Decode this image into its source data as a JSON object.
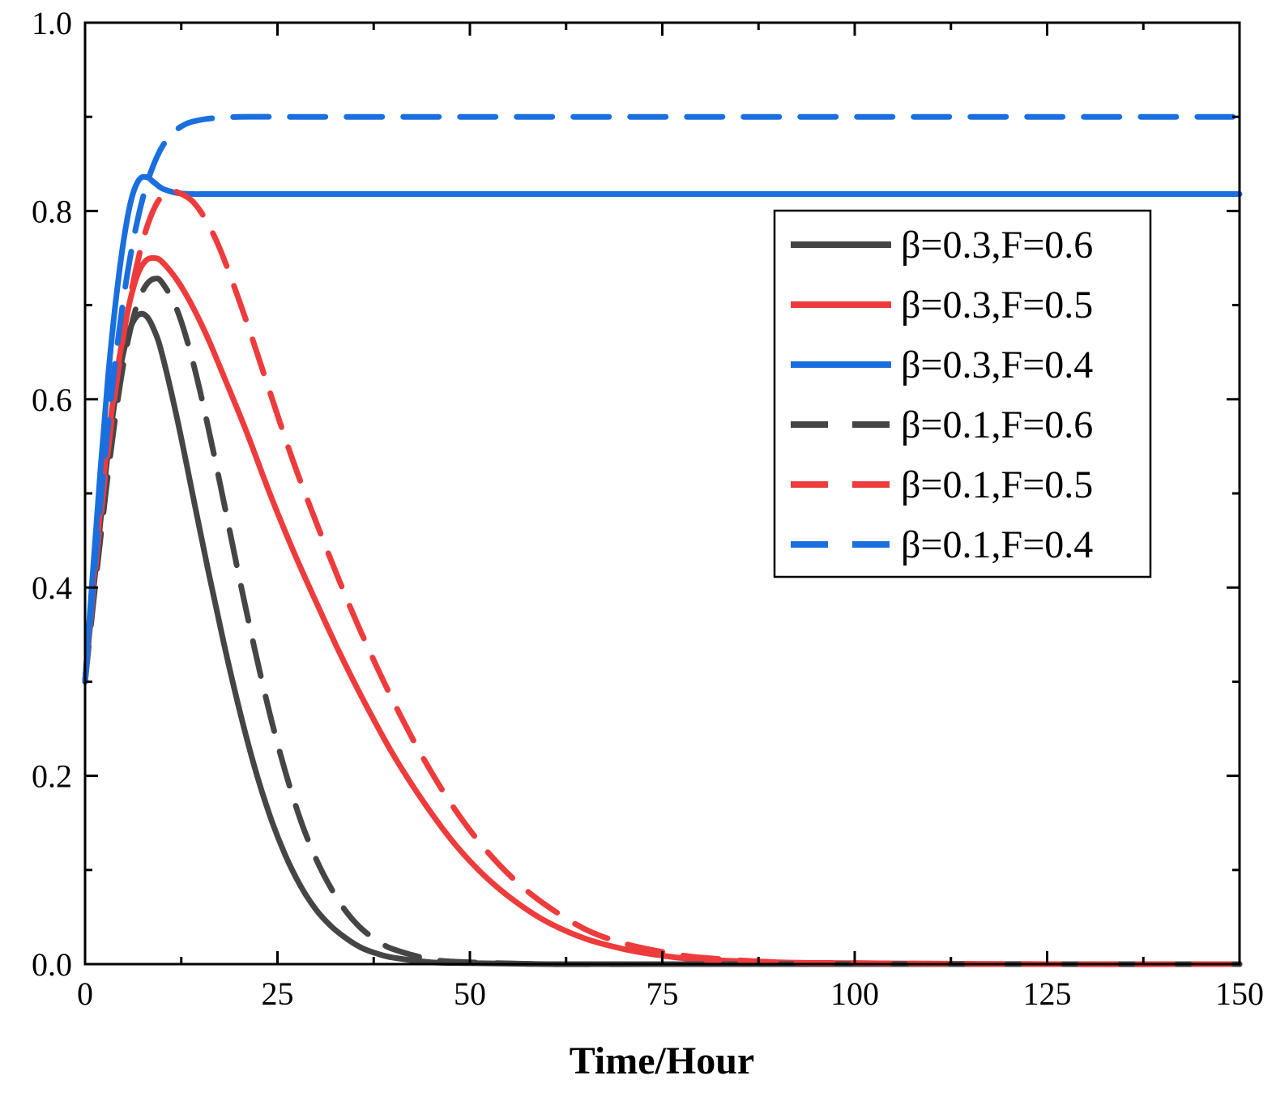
{
  "figure": {
    "background_color": "#ffffff",
    "axis_color": "#000000"
  },
  "chart_data": {
    "type": "line",
    "title": "",
    "xlabel": "Time/Hour",
    "ylabel": "",
    "xlim": [
      0,
      150
    ],
    "ylim": [
      0,
      1
    ],
    "grid": false,
    "legend_position": "upper-right",
    "legend_border": true,
    "xticks": {
      "major": [
        0,
        25,
        50,
        75,
        100,
        125,
        150
      ],
      "labels": [
        "0",
        "25",
        "50",
        "75",
        "100",
        "125",
        "150"
      ],
      "minor_step": 12.5
    },
    "yticks": {
      "major": [
        0,
        0.2,
        0.4,
        0.6,
        0.8,
        1.0
      ],
      "labels": [
        "0.0",
        "0.2",
        "0.4",
        "0.6",
        "0.8",
        "1.0"
      ],
      "minor_step": 0.1
    },
    "series": [
      {
        "name": "β=0.3,F=0.6",
        "color": "#454545",
        "style": "solid",
        "x": [
          0,
          1,
          2,
          3,
          4,
          5,
          6,
          7,
          8,
          9,
          10,
          12,
          14,
          16,
          18,
          20,
          22,
          24,
          26,
          28,
          30,
          32,
          34,
          36,
          38,
          40,
          45,
          50,
          60,
          75,
          100,
          125,
          150
        ],
        "y": [
          0.3,
          0.39,
          0.47,
          0.545,
          0.605,
          0.65,
          0.678,
          0.69,
          0.688,
          0.673,
          0.648,
          0.578,
          0.498,
          0.418,
          0.342,
          0.272,
          0.21,
          0.158,
          0.116,
          0.083,
          0.058,
          0.04,
          0.027,
          0.017,
          0.011,
          0.007,
          0.002,
          0.001,
          0.0,
          0.0,
          0.0,
          0.0,
          0.0
        ]
      },
      {
        "name": "β=0.3,F=0.5",
        "color": "#ee3b3c",
        "style": "solid",
        "x": [
          0,
          1,
          2,
          3,
          4,
          5,
          6,
          7,
          8,
          9,
          10,
          12,
          14,
          16,
          18,
          21,
          24,
          27,
          30,
          33,
          36,
          40,
          44,
          48,
          52,
          56,
          60,
          65,
          70,
          75,
          80,
          90,
          100,
          125,
          150
        ],
        "y": [
          0.3,
          0.4,
          0.485,
          0.558,
          0.62,
          0.67,
          0.71,
          0.736,
          0.748,
          0.75,
          0.746,
          0.726,
          0.698,
          0.664,
          0.625,
          0.565,
          0.5,
          0.44,
          0.385,
          0.332,
          0.283,
          0.223,
          0.172,
          0.128,
          0.093,
          0.066,
          0.045,
          0.027,
          0.016,
          0.009,
          0.005,
          0.002,
          0.001,
          0.0,
          0.0
        ]
      },
      {
        "name": "β=0.3,F=0.4",
        "color": "#1a6fdf",
        "style": "solid",
        "x": [
          0,
          1,
          2,
          3,
          4,
          5,
          6,
          7,
          8,
          9,
          10,
          11,
          12,
          14,
          16,
          20,
          30,
          50,
          75,
          100,
          125,
          150
        ],
        "y": [
          0.3,
          0.415,
          0.525,
          0.625,
          0.705,
          0.768,
          0.812,
          0.833,
          0.836,
          0.83,
          0.824,
          0.821,
          0.819,
          0.818,
          0.818,
          0.818,
          0.818,
          0.818,
          0.818,
          0.818,
          0.818,
          0.818
        ]
      },
      {
        "name": "β=0.1,F=0.6",
        "color": "#454545",
        "style": "dashed",
        "x": [
          0,
          1,
          2,
          3,
          4,
          5,
          6,
          7,
          8,
          9,
          10,
          12,
          14,
          16,
          18,
          20,
          22,
          24,
          26,
          28,
          30,
          32,
          34,
          36,
          38,
          40,
          45,
          50,
          60,
          75,
          100,
          125,
          150
        ],
        "y": [
          0.3,
          0.378,
          0.452,
          0.522,
          0.585,
          0.638,
          0.678,
          0.706,
          0.722,
          0.728,
          0.724,
          0.694,
          0.64,
          0.57,
          0.492,
          0.412,
          0.336,
          0.266,
          0.205,
          0.153,
          0.112,
          0.08,
          0.055,
          0.037,
          0.025,
          0.016,
          0.005,
          0.002,
          0.0,
          0.0,
          0.0,
          0.0,
          0.0
        ]
      },
      {
        "name": "β=0.1,F=0.5",
        "color": "#ee3b3c",
        "style": "dashed",
        "x": [
          0,
          1,
          2,
          3,
          4,
          5,
          6,
          7,
          8,
          9,
          10,
          11,
          12,
          14,
          16,
          18,
          21,
          24,
          27,
          30,
          33,
          36,
          40,
          44,
          48,
          52,
          56,
          60,
          65,
          70,
          75,
          80,
          90,
          100,
          125,
          150
        ],
        "y": [
          0.3,
          0.39,
          0.472,
          0.546,
          0.612,
          0.668,
          0.714,
          0.752,
          0.782,
          0.803,
          0.816,
          0.821,
          0.82,
          0.81,
          0.786,
          0.75,
          0.682,
          0.608,
          0.535,
          0.47,
          0.408,
          0.35,
          0.28,
          0.218,
          0.165,
          0.122,
          0.088,
          0.062,
          0.037,
          0.022,
          0.013,
          0.007,
          0.002,
          0.001,
          0.0,
          0.0
        ]
      },
      {
        "name": "β=0.1,F=0.4",
        "color": "#1a6fdf",
        "style": "dashed",
        "x": [
          0,
          1,
          2,
          3,
          4,
          5,
          6,
          7,
          8,
          9,
          10,
          11,
          12,
          13,
          14,
          16,
          18,
          20,
          25,
          30,
          50,
          75,
          100,
          125,
          150
        ],
        "y": [
          0.3,
          0.398,
          0.49,
          0.572,
          0.645,
          0.707,
          0.757,
          0.797,
          0.828,
          0.851,
          0.868,
          0.879,
          0.887,
          0.892,
          0.895,
          0.898,
          0.899,
          0.9,
          0.9,
          0.9,
          0.9,
          0.9,
          0.9,
          0.9,
          0.9
        ]
      }
    ]
  }
}
